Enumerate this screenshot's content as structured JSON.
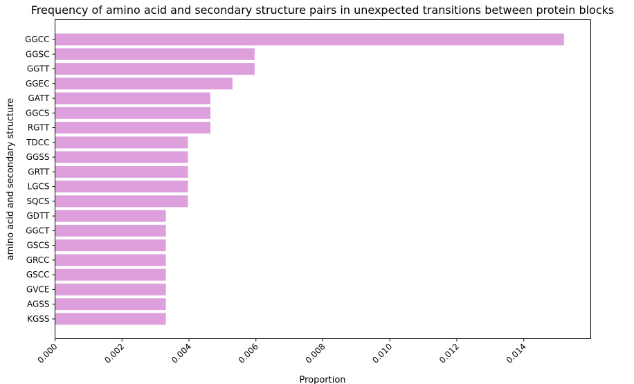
{
  "chart_data": {
    "type": "bar",
    "orientation": "horizontal",
    "title": "Frequency of amino acid and secondary structure pairs in unexpected transitions between protein blocks",
    "xlabel": "Proportion",
    "ylabel": "amino acid and secondary structure",
    "xlim": [
      0,
      0.016
    ],
    "xticks": [
      "0.000",
      "0.002",
      "0.004",
      "0.006",
      "0.008",
      "0.010",
      "0.012",
      "0.014"
    ],
    "bar_color": "#dda0dd",
    "grid": false,
    "categories": [
      "GGCC",
      "GGSC",
      "GGTT",
      "GGEC",
      "GATT",
      "GGCS",
      "RGTT",
      "TDCC",
      "GGSS",
      "GRTT",
      "LGCS",
      "SQCS",
      "GDTT",
      "GGCT",
      "GSCS",
      "GRCC",
      "GSCC",
      "GVCE",
      "AGSS",
      "KGSS"
    ],
    "values": [
      0.0152,
      0.00596,
      0.00596,
      0.0053,
      0.00464,
      0.00464,
      0.00464,
      0.00397,
      0.00397,
      0.00397,
      0.00397,
      0.00397,
      0.00331,
      0.00331,
      0.00331,
      0.00331,
      0.00331,
      0.00331,
      0.00331,
      0.00331
    ]
  }
}
